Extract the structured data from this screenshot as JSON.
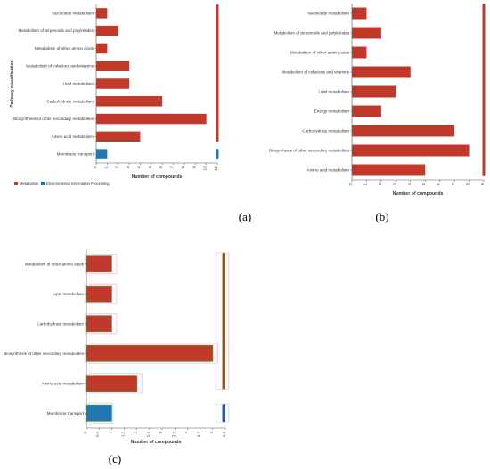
{
  "colors": {
    "metabolism": "#c0392b",
    "environmental": "#1f77b4",
    "bar_c_metabolism": "#c0392b",
    "bar_c_outline": "#5a8a2a",
    "highlight": "#f7cdea",
    "side_c": "#8b5a2b",
    "side_c_env": "#3050c0"
  },
  "chart_data": [
    {
      "type": "bar",
      "orientation": "horizontal",
      "panel_label": "(a)",
      "categories": [
        "Nucleotide metabolism",
        "Metabolism of terpenoids and polyketides",
        "Metabolism of other amino acids",
        "Metabolism of cofactors and vitamins",
        "Lipid metabolism",
        "Carbohydrate metabolism",
        "Biosynthesis of other secondary metabolites",
        "Amino acid metabolism",
        "Membrane transport"
      ],
      "values": [
        1,
        2,
        1,
        3,
        3,
        6,
        10,
        4,
        1
      ],
      "groups": [
        "metabolism",
        "metabolism",
        "metabolism",
        "metabolism",
        "metabolism",
        "metabolism",
        "metabolism",
        "metabolism",
        "environmental"
      ],
      "xlim": [
        0,
        11
      ],
      "xticks": [
        "0",
        "1",
        "2",
        "3",
        "4",
        "5",
        "6",
        "7",
        "8",
        "9",
        "10",
        "11"
      ],
      "xlabel": "Number of compounds",
      "ylabel": "Pathway classification",
      "legend": [
        "Metabolism",
        "Environmental Information Processing"
      ],
      "legend_position": "bottom-left"
    },
    {
      "type": "bar",
      "orientation": "horizontal",
      "panel_label": "(b)",
      "categories": [
        "Nucleotide metabolism",
        "Metabolism of terpenoids and polyketides",
        "Metabolism of other amino acids",
        "Metabolism of cofactors and vitamins",
        "Lipid metabolism",
        "Energy metabolism",
        "Carbohydrate metabolism",
        "Biosynthesis of other secondary metabolites",
        "Amino acid metabolism"
      ],
      "values": [
        1,
        2,
        1,
        4,
        3,
        2,
        7,
        8,
        5
      ],
      "xlim": [
        0,
        9
      ],
      "xticks": [
        "0",
        "1",
        "2",
        "3",
        "4",
        "5",
        "6",
        "7",
        "8",
        "9"
      ],
      "xlabel": "Number of compounds"
    },
    {
      "type": "bar",
      "orientation": "horizontal",
      "panel_label": "(c)",
      "categories": [
        "Metabolism of other amino acids",
        "Lipid metabolism",
        "Carbohydrate metabolism",
        "Biosynthesis of other secondary metabolites",
        "Amino acid metabolism",
        "Membrane transport"
      ],
      "values": [
        1,
        1,
        1,
        5,
        2,
        1
      ],
      "groups": [
        "metabolism",
        "metabolism",
        "metabolism",
        "metabolism",
        "metabolism",
        "environmental"
      ],
      "xlim": [
        0,
        5.5
      ],
      "xticks": [
        "0",
        "0.5",
        "1",
        "1.5",
        "2",
        "2.5",
        "3",
        "3.5",
        "4",
        "4.5",
        "5",
        "5.5"
      ],
      "xlabel": "Number of compounds"
    }
  ]
}
